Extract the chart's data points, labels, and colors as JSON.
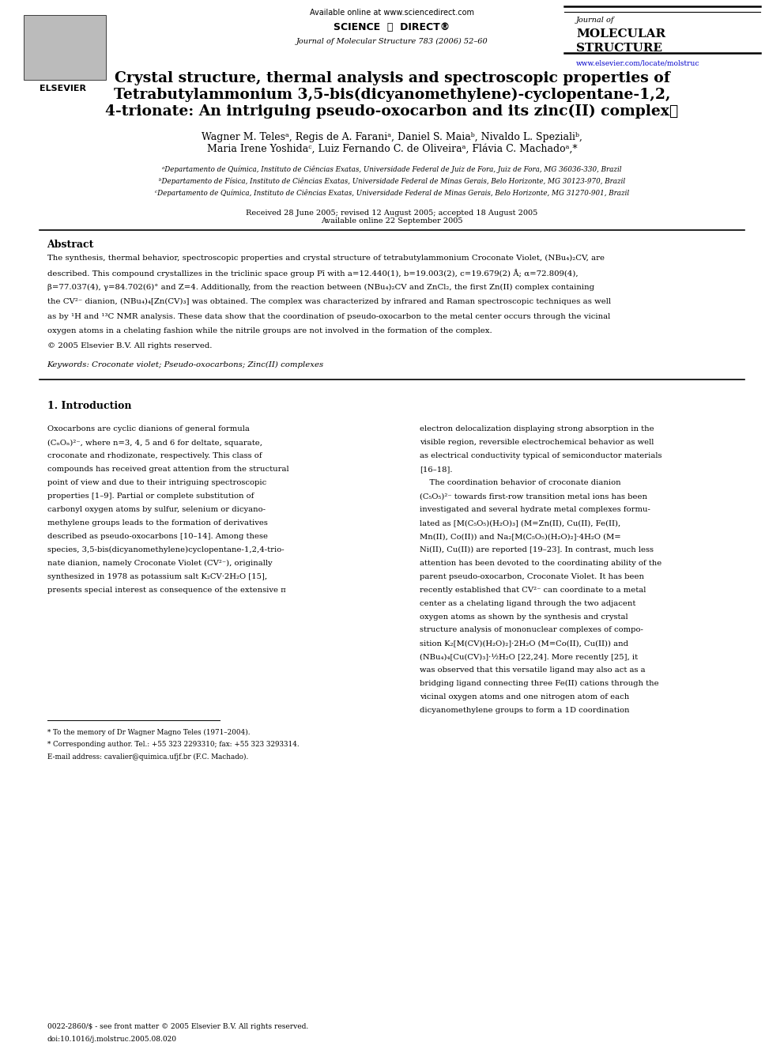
{
  "bg_color": "#ffffff",
  "page_width": 9.92,
  "page_height": 13.23,
  "header": {
    "available_online": "Available online at www.sciencedirect.com",
    "journal_line": "Journal of Molecular Structure 783 (2006) 52–60",
    "journal_name_line1": "Journal of",
    "journal_name_line2": "MOLECULAR",
    "journal_name_line3": "STRUCTURE",
    "journal_url": "www.elsevier.com/locate/molstruc",
    "elsevier_label": "ELSEVIER"
  },
  "title": "Crystal structure, thermal analysis and spectroscopic properties of\nTetrabutylammonium 3,5-bis(dicyanomethylene)-cyclopentane-1,2,\n4-trionate: An intriguing pseudo-oxocarbon and its zinc(II) complex★",
  "authors": "Wagner M. Telesᵃ, Regis de A. Faraniᵃ, Daniel S. Maiaᵇ, Nivaldo L. Spezialiᵇ,\nMaria Irene Yoshidaᶜ, Luiz Fernando C. de Oliveiraᵃ, Flávia C. Machadoᵃ,*",
  "affiliations": [
    "ᵃDepartamento de Química, Instituto de Ciências Exatas, Universidade Federal de Juiz de Fora, Juiz de Fora, MG 36036-330, Brazil",
    "ᵇDepartamento de Física, Instituto de Ciências Exatas, Universidade Federal de Minas Gerais, Belo Horizonte, MG 30123-970, Brazil",
    "ᶜDepartamento de Química, Instituto de Ciências Exatas, Universidade Federal de Minas Gerais, Belo Horizonte, MG 31270-901, Brazil"
  ],
  "dates": "Received 28 June 2005; revised 12 August 2005; accepted 18 August 2005\nAvailable online 22 September 2005",
  "abstract_title": "Abstract",
  "abstract_text": "The synthesis, thermal behavior, spectroscopic properties and crystal structure of tetrabutylammonium Croconate Violet, (NBu₄)₂CV, are\ndescribed. This compound crystallizes in the triclinic space group Pī with a=12.440(1), b=19.003(2), c=19.679(2) Å; α=72.809(4),\nβ=77.037(4), γ=84.702(6)° and Z=4. Additionally, from the reaction between (NBu₄)₂CV and ZnCl₂, the first Zn(II) complex containing\nthe CV²⁻ dianion, (NBu₄)₄[Zn(CV)₃] was obtained. The complex was characterized by infrared and Raman spectroscopic techniques as well\nas by ¹H and ¹³C NMR analysis. These data show that the coordination of pseudo-oxocarbon to the metal center occurs through the vicinal\noxygen atoms in a chelating fashion while the nitrile groups are not involved in the formation of the complex.\n© 2005 Elsevier B.V. All rights reserved.",
  "keywords": "Keywords: Croconate violet; Pseudo-oxocarbons; Zinc(II) complexes",
  "section1_title": "1. Introduction",
  "section1_left": "Oxocarbons are cyclic dianions of general formula\n(CₙOₙ)²⁻, where n=3, 4, 5 and 6 for deltate, squarate,\ncroconate and rhodizonate, respectively. This class of\ncompounds has received great attention from the structural\npoint of view and due to their intriguing spectroscopic\nproperties [1–9]. Partial or complete substitution of\ncarbonyl oxygen atoms by sulfur, selenium or dicyano-\nmethylene groups leads to the formation of derivatives\ndescribed as pseudo-oxocarbons [10–14]. Among these\nspecies, 3,5-bis(dicyanomethylene)cyclopentane-1,2,4-trio-\nnate dianion, namely Croconate Violet (CV²⁻), originally\nsynthesized in 1978 as potassium salt K₂CV·2H₂O [15],\npresents special interest as consequence of the extensive π",
  "section1_right": "electron delocalization displaying strong absorption in the\nvisible region, reversible electrochemical behavior as well\nas electrical conductivity typical of semiconductor materials\n[16–18].\n    The coordination behavior of croconate dianion\n(C₅O₅)²⁻ towards first-row transition metal ions has been\ninvestigated and several hydrate metal complexes formu-\nlated as [M(C₅O₅)(H₂O)₃] (M=Zn(II), Cu(II), Fe(II),\nMn(II), Co(II)) and Na₂[M(C₅O₅)(H₂O)₂]·4H₂O (M=\nNi(II), Cu(II)) are reported [19–23]. In contrast, much less\nattention has been devoted to the coordinating ability of the\nparent pseudo-oxocarbon, Croconate Violet. It has been\nrecently established that CV²⁻ can coordinate to a metal\ncenter as a chelating ligand through the two adjacent\noxygen atoms as shown by the synthesis and crystal\nstructure analysis of mononuclear complexes of compo-\nsition K₂[M(CV)(H₂O)₂]·2H₂O (M=Co(II), Cu(II)) and\n(NBu₄)₄[Cu(CV)₃]·½H₂O [22,24]. More recently [25], it\nwas observed that this versatile ligand may also act as a\nbridging ligand connecting three Fe(II) cations through the\nvicinal oxygen atoms and one nitrogen atom of each\ndicyanomethylene groups to form a 1D coordination",
  "footnote_star": "* To the memory of Dr Wagner Magno Teles (1971–2004).",
  "footnote_corr": "* Corresponding author. Tel.: +55 323 2293310; fax: +55 323 3293314.",
  "footnote_email": "E-mail address: cavalier@quimica.ufjf.br (F.C. Machado).",
  "footer_issn": "0022-2860/$ - see front matter © 2005 Elsevier B.V. All rights reserved.",
  "footer_doi": "doi:10.1016/j.molstruc.2005.08.020"
}
